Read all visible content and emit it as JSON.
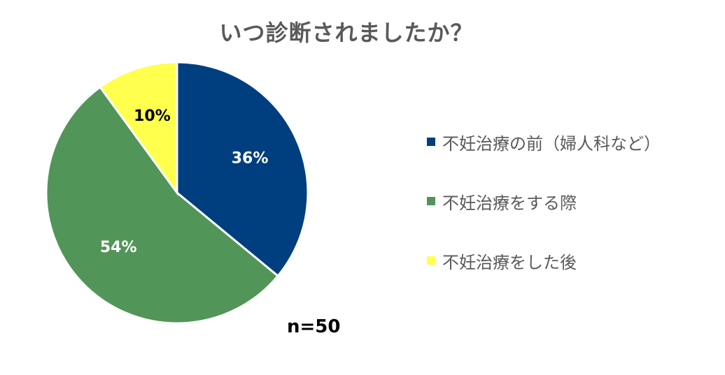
{
  "chart_data": {
    "type": "pie",
    "title": "いつ診断されましたか？",
    "slices": [
      {
        "label": "不妊治療の前（婦人科など）",
        "value": 36,
        "display": "36%",
        "color": "#003f7f",
        "label_color": "#ffffff"
      },
      {
        "label": "不妊治療をする際",
        "value": 54,
        "display": "54%",
        "color": "#529558",
        "label_color": "#ffffff"
      },
      {
        "label": "不妊治療をした後",
        "value": 10,
        "display": "10%",
        "color": "#ffff4d",
        "label_color": "#000000"
      }
    ],
    "legend_position": "right",
    "annotation": "n=50"
  }
}
